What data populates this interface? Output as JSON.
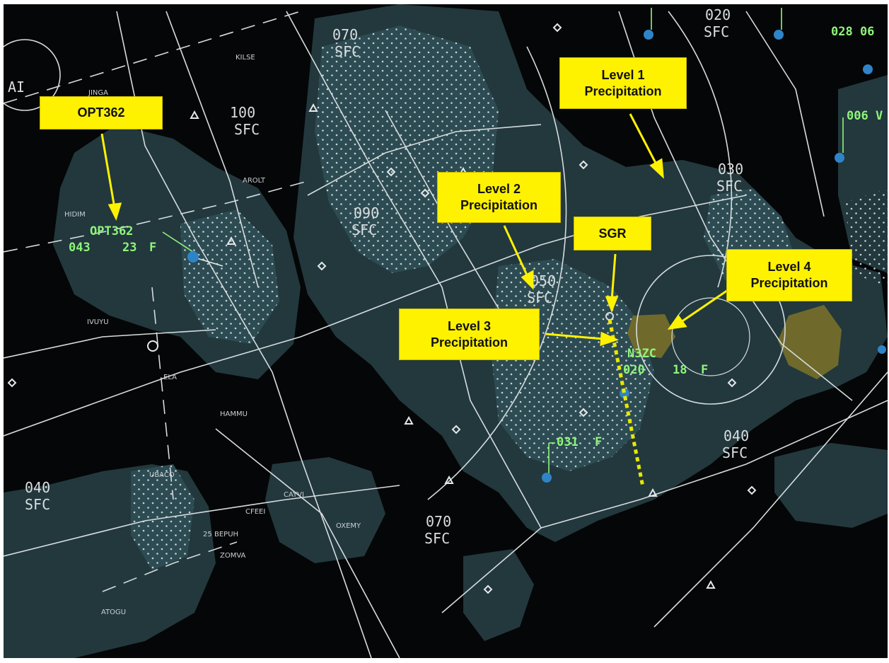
{
  "callouts": {
    "opt362": "OPT362",
    "level1": "Level 1\nPrecipitation",
    "level2": "Level 2\nPrecipitation",
    "level3": "Level 3\nPrecipitation",
    "level4": "Level 4\nPrecipitation",
    "sgr": "SGR"
  },
  "altitude_labels": [
    {
      "id": "alt-070-top",
      "top": "070",
      "bottom": "SFC"
    },
    {
      "id": "alt-020",
      "top": "020",
      "bottom": "SFC"
    },
    {
      "id": "alt-100",
      "top": "100",
      "bottom": "SFC"
    },
    {
      "id": "alt-090",
      "top": "090",
      "bottom": "SFC"
    },
    {
      "id": "alt-030",
      "top": "030",
      "bottom": "SFC"
    },
    {
      "id": "alt-050",
      "top": "050",
      "bottom": "SFC"
    },
    {
      "id": "alt-040-right",
      "top": "040",
      "bottom": "SFC"
    },
    {
      "id": "alt-040-left",
      "top": "040",
      "bottom": "SFC"
    },
    {
      "id": "alt-070-bottom",
      "top": "070",
      "bottom": "SFC"
    }
  ],
  "fixes": [
    "KILSE",
    "JINGA",
    "HIDIM",
    "AROLT",
    "IVUYU",
    "ELA",
    "HAMMU",
    "UBACO",
    "CAYVI",
    "CFEEI",
    "25",
    "BEPUH",
    "ZOMVA",
    "OXEMY",
    "ATOGU",
    "AI"
  ],
  "datablocks": {
    "opt362": {
      "callsign": "OPT362",
      "altitude": "043",
      "speed": "23",
      "flag": "F"
    },
    "n3zc": {
      "callsign": "N3ZC",
      "altitude": "020",
      "speed": "18",
      "flag": "F"
    },
    "lower": {
      "altitude": "031",
      "flag": "F"
    },
    "top_right_1": {
      "text": "028 06"
    },
    "top_right_2": {
      "text": "006 V"
    }
  },
  "colors": {
    "scope_background": "#050607",
    "precip_level1": "#22383d",
    "precip_level2": "#2d4b52",
    "precip_level4": "#6f6a2c",
    "datablock_green": "#8ff57a",
    "callout_yellow": "#fff200",
    "track_line": "#e8e800"
  }
}
